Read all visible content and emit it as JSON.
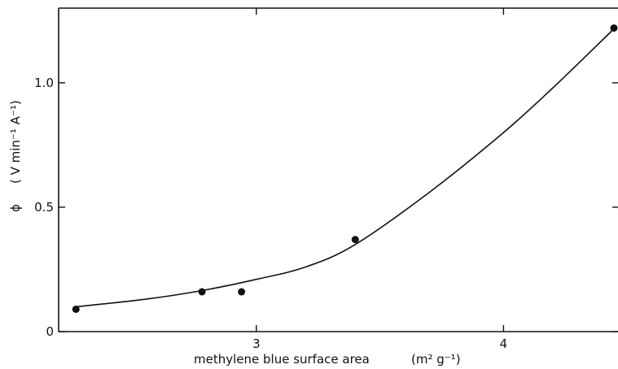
{
  "chart_data": {
    "type": "scatter",
    "title": "",
    "xlabel": "methylene blue surface area",
    "xlabel_unit": "(m² g⁻¹)",
    "ylabel_symbol": "ϕ",
    "ylabel_unit": "( V min⁻¹ A⁻¹)",
    "xlim": [
      2.2,
      4.45
    ],
    "ylim": [
      0,
      1.3
    ],
    "x_ticks": [
      {
        "value": 3,
        "label": "3"
      },
      {
        "value": 4,
        "label": "4"
      }
    ],
    "y_ticks": [
      {
        "value": 0,
        "label": "0"
      },
      {
        "value": 0.5,
        "label": "0.5"
      },
      {
        "value": 1.0,
        "label": "1.0"
      }
    ],
    "grid": false,
    "series": [
      {
        "points": [
          {
            "x": 2.27,
            "y": 0.09
          },
          {
            "x": 2.78,
            "y": 0.16
          },
          {
            "x": 2.94,
            "y": 0.16
          },
          {
            "x": 3.4,
            "y": 0.37
          },
          {
            "x": 4.45,
            "y": 1.22
          }
        ],
        "fit_curve": [
          {
            "x": 2.27,
            "y": 0.1
          },
          {
            "x": 2.55,
            "y": 0.13
          },
          {
            "x": 2.78,
            "y": 0.165
          },
          {
            "x": 3.0,
            "y": 0.21
          },
          {
            "x": 3.2,
            "y": 0.26
          },
          {
            "x": 3.4,
            "y": 0.35
          },
          {
            "x": 3.7,
            "y": 0.56
          },
          {
            "x": 4.0,
            "y": 0.8
          },
          {
            "x": 4.2,
            "y": 0.98
          },
          {
            "x": 4.45,
            "y": 1.22
          }
        ]
      }
    ]
  }
}
